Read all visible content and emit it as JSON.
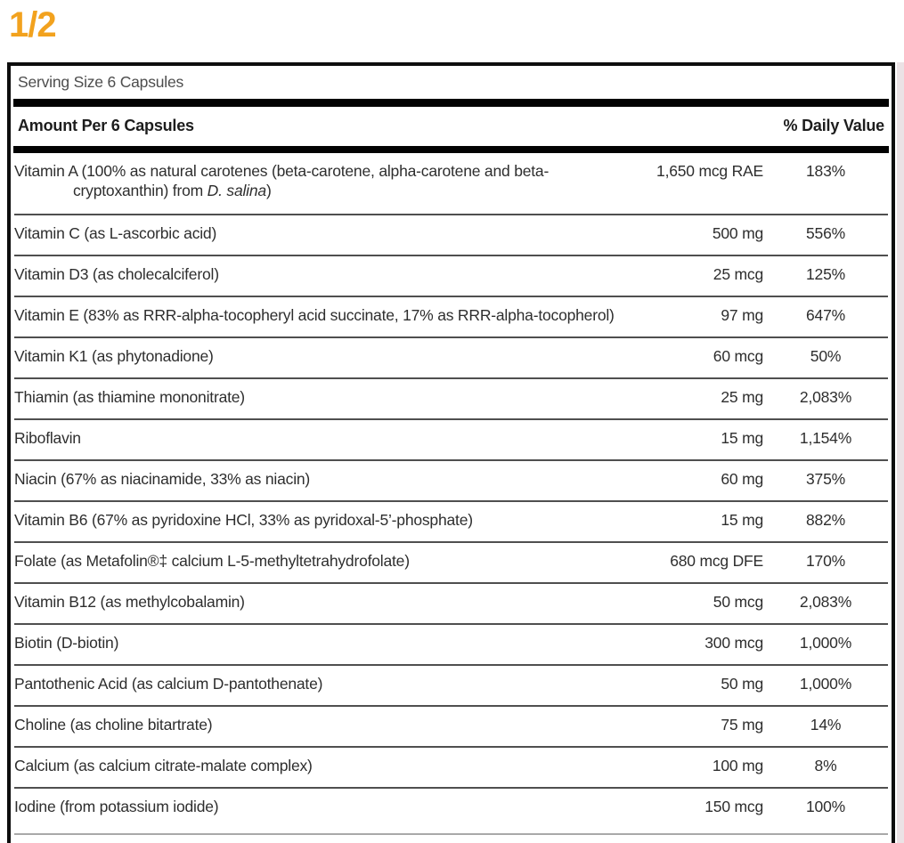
{
  "page": {
    "indicator": "1/2"
  },
  "colors": {
    "accent_orange": "#F2A21E",
    "edge_strip": "#ebe2e5"
  },
  "table": {
    "serving_size": "Serving Size 6 Capsules",
    "header": {
      "amount_label": "Amount Per 6 Capsules",
      "dv_label": "% Daily Value"
    },
    "rows": [
      {
        "name_lines": [
          [
            {
              "t": "Vitamin A (100% as natural carotenes (beta-carotene, alpha-carotene and beta-"
            }
          ],
          [
            {
              "t": "cryptoxanthin) from "
            },
            {
              "t": "D. salina",
              "i": true
            },
            {
              "t": ")"
            }
          ]
        ],
        "amount": "1,650 mcg RAE",
        "dv": "183%"
      },
      {
        "name": "Vitamin C (as L-ascorbic acid)",
        "amount": "500 mg",
        "dv": "556%"
      },
      {
        "name": "Vitamin D3 (as cholecalciferol)",
        "amount": "25 mcg",
        "dv": "125%"
      },
      {
        "name": "Vitamin E (83% as RRR-alpha-tocopheryl acid succinate, 17% as RRR-alpha-tocopherol)",
        "amount": "97 mg",
        "dv": "647%"
      },
      {
        "name": "Vitamin K1 (as phytonadione)",
        "amount": "60 mcg",
        "dv": "50%"
      },
      {
        "name": "Thiamin (as thiamine mononitrate)",
        "amount": "25 mg",
        "dv": "2,083%"
      },
      {
        "name": "Riboflavin",
        "amount": "15 mg",
        "dv": "1,154%"
      },
      {
        "name": "Niacin (67% as niacinamide, 33% as niacin)",
        "amount": "60 mg",
        "dv": "375%"
      },
      {
        "name": "Vitamin B6 (67% as pyridoxine HCl, 33% as pyridoxal-5’-phosphate)",
        "amount": "15 mg",
        "dv": "882%"
      },
      {
        "name": "Folate (as Metafolin®‡ calcium L-5-methyltetrahydrofolate)",
        "amount": "680 mcg DFE",
        "dv": "170%"
      },
      {
        "name": "Vitamin B12 (as methylcobalamin)",
        "amount": "50 mcg",
        "dv": "2,083%"
      },
      {
        "name": "Biotin (D-biotin)",
        "amount": "300 mcg",
        "dv": "1,000%"
      },
      {
        "name": "Pantothenic Acid (as calcium D-pantothenate)",
        "amount": "50 mg",
        "dv": "1,000%"
      },
      {
        "name": "Choline (as choline bitartrate)",
        "amount": "75 mg",
        "dv": "14%"
      },
      {
        "name": "Calcium (as calcium citrate-malate complex)",
        "amount": "100 mg",
        "dv": "8%"
      },
      {
        "name": "Iodine (from potassium iodide)",
        "amount": "150 mcg",
        "dv": "100%"
      }
    ]
  }
}
